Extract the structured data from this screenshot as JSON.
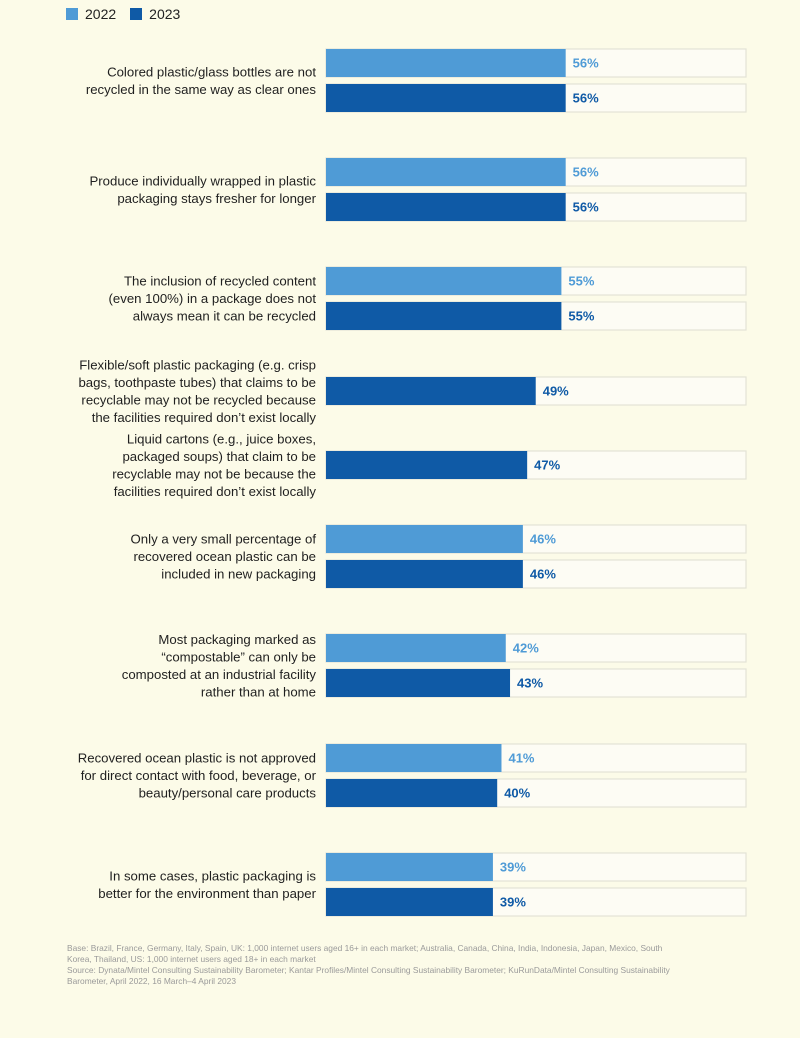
{
  "chart_data": {
    "type": "bar",
    "orientation": "horizontal",
    "xlim": [
      0,
      100
    ],
    "legend_placement": "top-left",
    "colors": {
      "2022": "#4f9bd6",
      "2023": "#0f5aa6",
      "track_fill": "#fdfcf4",
      "track_border": "#e3e3d6",
      "label_2022": "#4f9bd6",
      "label_2023": "#0f5aa6"
    },
    "series": [
      {
        "name": "2022",
        "values": [
          56,
          56,
          55,
          null,
          null,
          46,
          42,
          41,
          39
        ]
      },
      {
        "name": "2023",
        "values": [
          56,
          56,
          55,
          49,
          47,
          46,
          43,
          40,
          39
        ]
      }
    ],
    "categories": [
      {
        "lines": [
          "Colored plastic/glass bottles are not",
          "recycled in the same way as clear ones"
        ]
      },
      {
        "lines": [
          "Produce individually wrapped in plastic",
          "packaging stays fresher for longer"
        ]
      },
      {
        "lines": [
          "The inclusion of recycled content",
          "(even 100%) in a package does not",
          "always mean it can be recycled"
        ]
      },
      {
        "lines": [
          "Flexible/soft plastic packaging (e.g. crisp",
          "bags, toothpaste tubes) that claims to be",
          "recyclable may not be recycled because",
          "the facilities required don’t exist locally"
        ]
      },
      {
        "lines": [
          "Liquid cartons (e.g., juice boxes,",
          "packaged soups) that claim to be",
          "recyclable may not be because the",
          "facilities required don’t exist locally"
        ]
      },
      {
        "lines": [
          "Only a very small percentage of",
          "recovered ocean plastic can be",
          "included in new packaging"
        ]
      },
      {
        "lines": [
          "Most packaging marked as",
          "“compostable” can only be",
          "composted at an industrial facility",
          "rather than at home"
        ]
      },
      {
        "lines": [
          "Recovered ocean plastic is not approved",
          "for direct contact with food, beverage, or",
          "beauty/personal care products"
        ]
      },
      {
        "lines": [
          "In some cases, plastic packaging is",
          "better for the environment than paper"
        ]
      }
    ],
    "value_suffix": "%"
  },
  "legend": [
    {
      "label": "2022",
      "color": "#4f9bd6"
    },
    {
      "label": "2023",
      "color": "#0f5aa6"
    }
  ],
  "source_note": {
    "lines": [
      "Base: Brazil, France, Germany, Italy, Spain, UK: 1,000 internet users aged 16+ in each market; Australia, Canada, China, India, Indonesia, Japan, Mexico, South",
      "Korea, Thailand, US: 1,000 internet users aged 18+ in each market",
      "Source: Dynata/Mintel Consulting Sustainability Barometer; Kantar Profiles/Mintel Consulting Sustainability Barometer; KuRunData/Mintel Consulting Sustainability",
      "Barometer, April 2022, 16 March–4 April 2023"
    ]
  }
}
